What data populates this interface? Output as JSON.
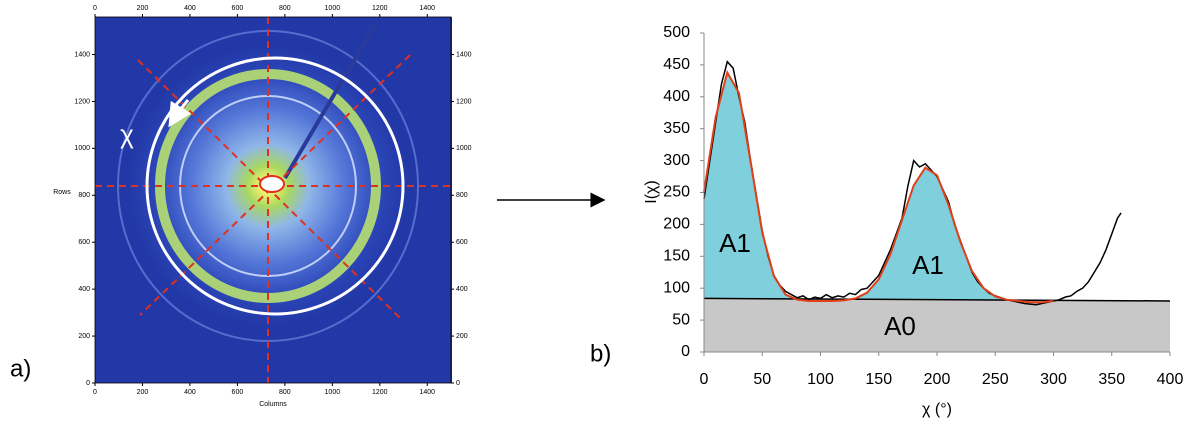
{
  "chart_data": [
    {
      "type": "image",
      "panel_label": "a)",
      "xlabel": "Columns",
      "ylabel": "Rows",
      "annotation": "χ",
      "xlim": [
        0,
        1500
      ],
      "xticks": [
        0,
        200,
        400,
        600,
        800,
        1000,
        1200,
        1400
      ],
      "ylim": [
        0,
        1560
      ],
      "yticks": [
        0,
        200,
        400,
        600,
        800,
        1000,
        1200,
        1400
      ]
    },
    {
      "type": "line",
      "panel_label": "b)",
      "xlabel": "χ (°)",
      "ylabel": "I(χ)",
      "annotations": [
        "A1",
        "A1",
        "A0"
      ],
      "xlim": [
        0,
        400
      ],
      "xticks": [
        0,
        50,
        100,
        150,
        200,
        250,
        300,
        350,
        400
      ],
      "ylim": [
        0,
        500
      ],
      "yticks": [
        0,
        50,
        100,
        150,
        200,
        250,
        300,
        350,
        400,
        450,
        500
      ],
      "series": [
        {
          "color": "#000000",
          "fill": "#c8c8c8",
          "x": [
            0,
            400
          ],
          "values": [
            84,
            80
          ]
        },
        {
          "color": "#e0401a",
          "fill": "#7fd0dc",
          "x": [
            0,
            10,
            20,
            30,
            40,
            50,
            60,
            70,
            80,
            90,
            100,
            110,
            120,
            130,
            140,
            150,
            160,
            170,
            180,
            190,
            200,
            210,
            220,
            230,
            240,
            250,
            260,
            270,
            280,
            290,
            300
          ],
          "values": [
            251,
            368,
            438,
            406,
            298,
            187,
            119,
            90,
            82,
            80,
            80,
            80,
            81,
            84,
            93,
            114,
            153,
            207,
            261,
            289,
            277,
            230,
            173,
            127,
            100,
            87,
            82,
            80,
            78,
            78,
            80
          ]
        },
        {
          "color": "#000000",
          "x": [
            0,
            5,
            10,
            15,
            20,
            25,
            30,
            35,
            40,
            45,
            50,
            55,
            60,
            65,
            70,
            75,
            80,
            85,
            90,
            95,
            100,
            105,
            110,
            115,
            120,
            125,
            130,
            135,
            140,
            145,
            150,
            155,
            160,
            165,
            170,
            175,
            180,
            185,
            190,
            195,
            200,
            205,
            210,
            215,
            220,
            225,
            230,
            235,
            240,
            245,
            250,
            255,
            260,
            265,
            270,
            275,
            280,
            285,
            290,
            295,
            300,
            305,
            310,
            315,
            320,
            325,
            330,
            335,
            340,
            345,
            350,
            355,
            358
          ],
          "values": [
            240,
            300,
            360,
            420,
            455,
            445,
            400,
            360,
            300,
            245,
            190,
            150,
            120,
            105,
            95,
            90,
            85,
            88,
            82,
            86,
            84,
            90,
            85,
            88,
            86,
            92,
            90,
            98,
            100,
            110,
            120,
            140,
            160,
            185,
            210,
            260,
            300,
            290,
            295,
            285,
            275,
            255,
            235,
            200,
            175,
            150,
            125,
            110,
            100,
            92,
            88,
            85,
            82,
            80,
            78,
            76,
            75,
            74,
            76,
            78,
            80,
            82,
            86,
            88,
            95,
            100,
            110,
            125,
            140,
            160,
            185,
            210,
            218
          ]
        }
      ]
    }
  ]
}
